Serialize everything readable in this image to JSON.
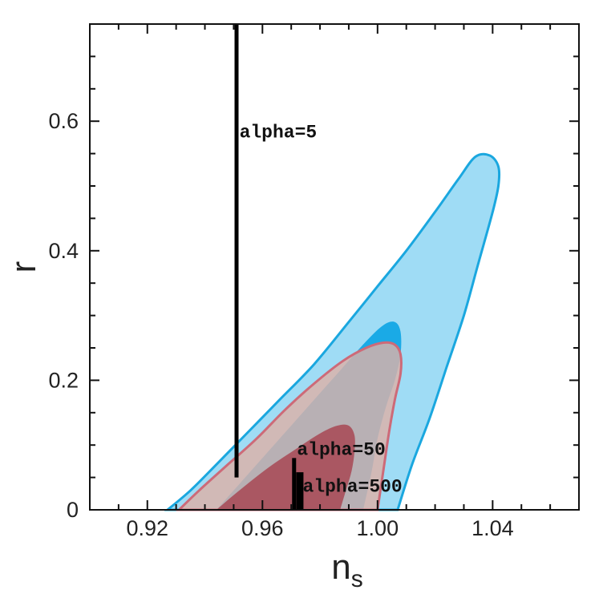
{
  "chart_data": {
    "type": "contour",
    "title": "",
    "xlabel": "n",
    "xlabel_sub": "s",
    "ylabel": "r",
    "xlim": [
      0.9,
      1.07
    ],
    "ylim": [
      0,
      0.75
    ],
    "xticks": [
      0.92,
      0.96,
      1.0,
      1.04
    ],
    "xtick_labels": [
      "0.92",
      "0.96",
      "1.00",
      "1.04"
    ],
    "yticks": [
      0,
      0.2,
      0.4,
      0.6
    ],
    "ytick_labels": [
      "0",
      "0.2",
      "0.4",
      "0.6"
    ],
    "grid": false,
    "regions": [
      {
        "level": "outer",
        "color": "#9fdcf5",
        "edge": "#1aa7df",
        "outline": [
          [
            0.927,
            0
          ],
          [
            0.935,
            0.03
          ],
          [
            0.944,
            0.07
          ],
          [
            0.955,
            0.12
          ],
          [
            0.966,
            0.17
          ],
          [
            0.978,
            0.225
          ],
          [
            0.99,
            0.29
          ],
          [
            1.0,
            0.345
          ],
          [
            1.01,
            0.4
          ],
          [
            1.02,
            0.46
          ],
          [
            1.028,
            0.51
          ],
          [
            1.034,
            0.545
          ],
          [
            1.039,
            0.547
          ],
          [
            1.042,
            0.53
          ],
          [
            1.042,
            0.5
          ],
          [
            1.04,
            0.46
          ],
          [
            1.035,
            0.38
          ],
          [
            1.03,
            0.3
          ],
          [
            1.024,
            0.22
          ],
          [
            1.018,
            0.14
          ],
          [
            1.012,
            0.07
          ],
          [
            1.007,
            0
          ]
        ]
      },
      {
        "level": "inner",
        "color": "#1aaae6",
        "edge": "#1aaae6",
        "outline": [
          [
            0.944,
            0
          ],
          [
            0.952,
            0.04
          ],
          [
            0.962,
            0.09
          ],
          [
            0.974,
            0.15
          ],
          [
            0.986,
            0.21
          ],
          [
            0.996,
            0.26
          ],
          [
            1.002,
            0.285
          ],
          [
            1.006,
            0.29
          ],
          [
            1.008,
            0.275
          ],
          [
            1.008,
            0.24
          ],
          [
            1.006,
            0.2
          ],
          [
            1.003,
            0.16
          ],
          [
            1.0,
            0.11
          ],
          [
            0.998,
            0.06
          ],
          [
            0.995,
            0
          ]
        ]
      },
      {
        "level": "outer",
        "color": "#dcb1a8",
        "edge": "#cd6a78",
        "opacity": 0.82,
        "outline": [
          [
            0.931,
            0
          ],
          [
            0.938,
            0.03
          ],
          [
            0.948,
            0.07
          ],
          [
            0.958,
            0.11
          ],
          [
            0.968,
            0.155
          ],
          [
            0.978,
            0.195
          ],
          [
            0.988,
            0.23
          ],
          [
            0.996,
            0.25
          ],
          [
            1.002,
            0.258
          ],
          [
            1.006,
            0.255
          ],
          [
            1.008,
            0.24
          ],
          [
            1.008,
            0.21
          ],
          [
            1.006,
            0.17
          ],
          [
            1.004,
            0.12
          ],
          [
            1.002,
            0.06
          ],
          [
            1.0,
            0
          ]
        ]
      },
      {
        "level": "inner",
        "color": "#a9525e",
        "edge": "#a9525e",
        "opacity": 0.95,
        "outline": [
          [
            0.944,
            0
          ],
          [
            0.952,
            0.03
          ],
          [
            0.962,
            0.065
          ],
          [
            0.972,
            0.095
          ],
          [
            0.98,
            0.118
          ],
          [
            0.986,
            0.13
          ],
          [
            0.99,
            0.13
          ],
          [
            0.992,
            0.115
          ],
          [
            0.992,
            0.09
          ],
          [
            0.991,
            0.06
          ],
          [
            0.989,
            0.03
          ],
          [
            0.987,
            0
          ]
        ]
      }
    ],
    "lines": [
      {
        "label": "alpha=5",
        "x": 0.951,
        "y_start": 0.05,
        "y_end": 0.75,
        "label_x": 0.952,
        "label_y": 0.575
      },
      {
        "label": "alpha=50",
        "x": 0.971,
        "y_start": 0,
        "y_end": 0.08,
        "label_x": 0.972,
        "label_y": 0.085
      },
      {
        "label": "alpha=500",
        "x": 0.973,
        "y_start": 0,
        "y_end": 0.058,
        "label_x": 0.974,
        "label_y": 0.028
      }
    ]
  }
}
